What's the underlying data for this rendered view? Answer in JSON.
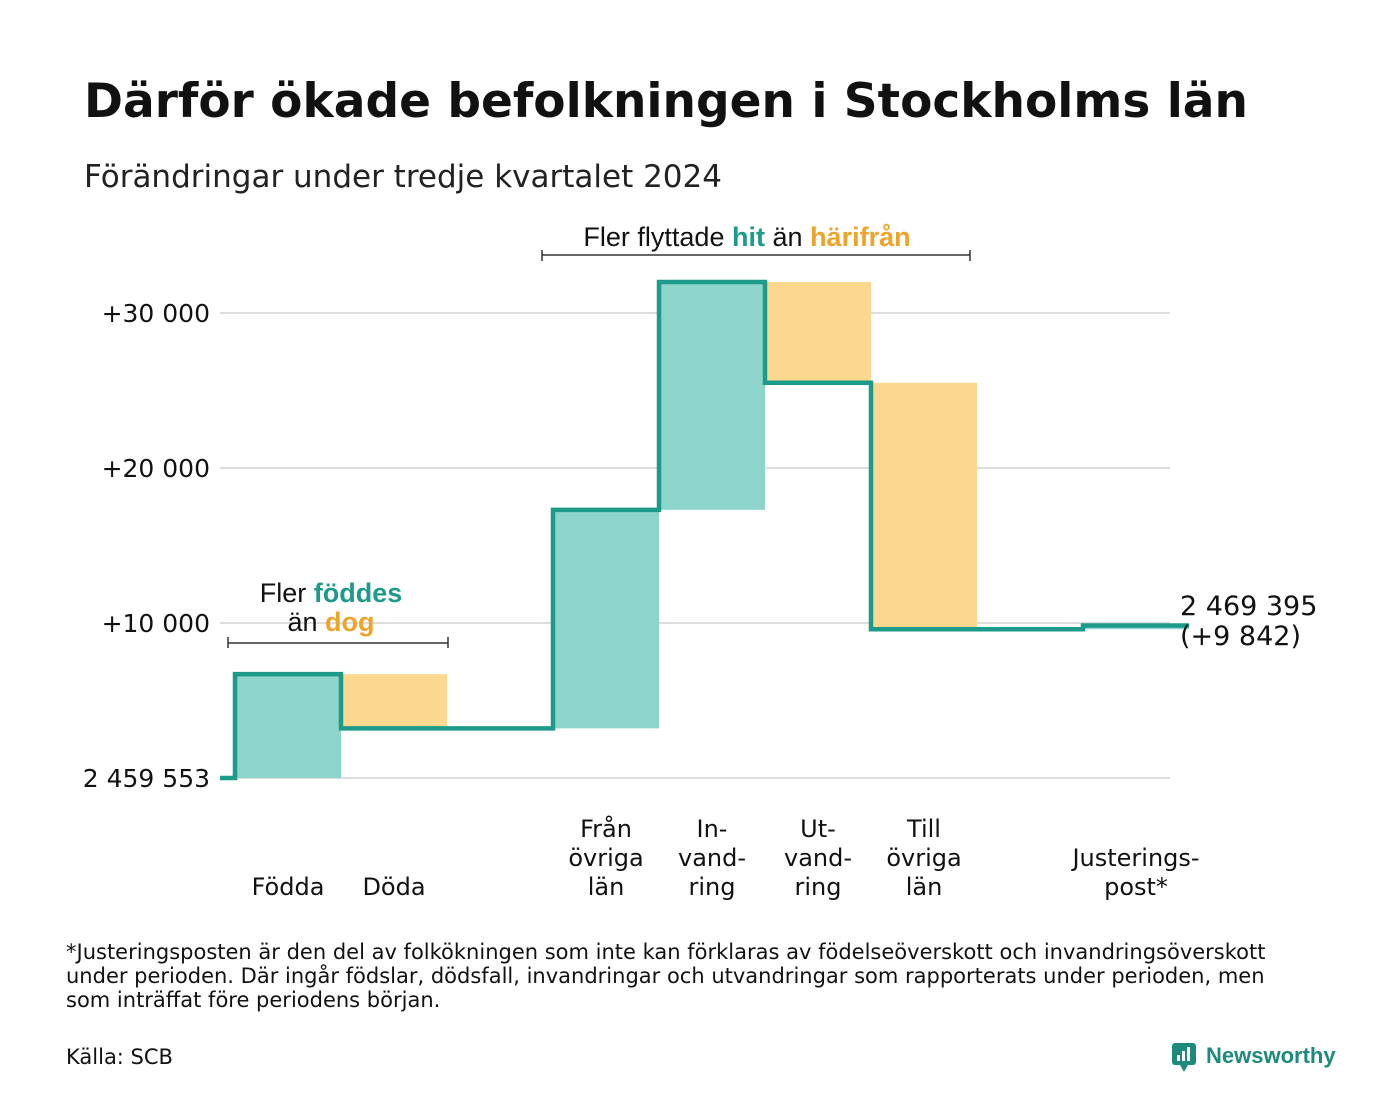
{
  "colors": {
    "increase": "#8dd5cb",
    "decrease": "#fcd78e",
    "line": "#1e9a8a",
    "orange_text": "#eea42a",
    "teal_text": "#1e9a8a",
    "grid": "#dddddd",
    "brand": "#1e8a7a"
  },
  "chart_data": {
    "type": "waterfall",
    "title": "Därför ökade befolkningen i Stockholms län",
    "subtitle": "Förändringar under tredje kvartalet 2024",
    "start_value": 2459553,
    "end_value": 2469395,
    "ylim": [
      0,
      32000
    ],
    "ylabel": "",
    "yticks": [
      {
        "value": 0,
        "label": "2 459 553"
      },
      {
        "value": 10000,
        "label": "+10 000"
      },
      {
        "value": 20000,
        "label": "+20 000"
      },
      {
        "value": 30000,
        "label": "+30 000"
      }
    ],
    "grid": true,
    "steps": [
      {
        "label": [
          "Födda"
        ],
        "from": 0,
        "to": 6700,
        "kind": "increase"
      },
      {
        "label": [
          "Döda"
        ],
        "from": 6700,
        "to": 3200,
        "kind": "decrease"
      },
      {
        "label": [],
        "from": 3200,
        "to": 3200,
        "kind": "gap"
      },
      {
        "label": [
          "Från",
          "övriga",
          "län"
        ],
        "from": 3200,
        "to": 17300,
        "kind": "increase"
      },
      {
        "label": [
          "In-",
          "vand-",
          "ring"
        ],
        "from": 17300,
        "to": 32000,
        "kind": "increase"
      },
      {
        "label": [
          "Ut-",
          "vand-",
          "ring"
        ],
        "from": 32000,
        "to": 25500,
        "kind": "decrease"
      },
      {
        "label": [
          "Till",
          "övriga",
          "län"
        ],
        "from": 25500,
        "to": 9600,
        "kind": "decrease"
      },
      {
        "label": [],
        "from": 9600,
        "to": 9600,
        "kind": "gap"
      },
      {
        "label": [
          "Justerings-",
          "post*"
        ],
        "from": 9600,
        "to": 9842,
        "kind": "increase"
      }
    ],
    "annotations": {
      "births": {
        "prefix": "Fler",
        "teal": "föddes",
        "line2_prefix": "än",
        "orange": "dog"
      },
      "migration": {
        "prefix": "Fler flyttade",
        "teal": "hit",
        "middle": "än",
        "orange": "härifrån"
      }
    },
    "end_label": {
      "line1": "2 469 395",
      "line2": "(+9 842)"
    }
  },
  "footnote": {
    "lines": [
      "*Justeringsposten är den del av folkökningen som inte kan förklaras av födelseöverskott och invandringsöverskott",
      "under perioden. Där ingår födslar, dödsfall, invandringar och utvandringar som rapporterats under perioden, men",
      "som inträffat före periodens början."
    ]
  },
  "source": "Källa: SCB",
  "brand": {
    "name": "Newsworthy",
    "icon": "newsworthy-logo-icon"
  }
}
